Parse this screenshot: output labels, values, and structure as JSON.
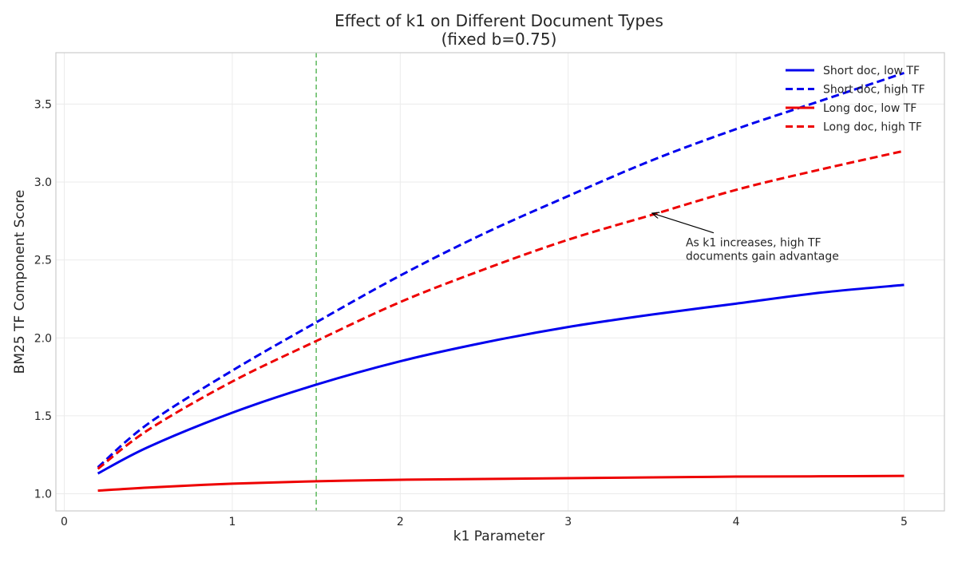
{
  "chart_data": {
    "type": "line",
    "title": "Effect of k1 on Different Document Types",
    "subtitle": "(fixed b=0.75)",
    "xlabel": "k1 Parameter",
    "ylabel": "BM25 TF Component Score",
    "xlim": [
      -0.05,
      5.24
    ],
    "ylim": [
      0.89,
      3.83
    ],
    "xticks": [
      0,
      1,
      2,
      3,
      4,
      5
    ],
    "xtick_labels": [
      "0",
      "1",
      "2",
      "3",
      "4",
      "5"
    ],
    "yticks": [
      1.0,
      1.5,
      2.0,
      2.5,
      3.0,
      3.5
    ],
    "ytick_labels": [
      "1.0",
      "1.5",
      "2.0",
      "2.5",
      "3.0",
      "3.5"
    ],
    "grid": true,
    "legend_position": "top-right",
    "x": [
      0.2,
      0.5,
      1.0,
      1.5,
      2.0,
      2.5,
      3.0,
      3.5,
      4.0,
      4.5,
      5.0
    ],
    "series": [
      {
        "name": "Short doc, low TF",
        "color": "#0000ee",
        "dash": "solid",
        "values": [
          1.13,
          1.3,
          1.52,
          1.7,
          1.85,
          1.97,
          2.07,
          2.15,
          2.22,
          2.29,
          2.34
        ]
      },
      {
        "name": "Short doc, high TF",
        "color": "#0000ee",
        "dash": "dashed",
        "values": [
          1.17,
          1.45,
          1.79,
          2.1,
          2.4,
          2.67,
          2.91,
          3.14,
          3.34,
          3.52,
          3.7
        ]
      },
      {
        "name": "Long doc, low TF",
        "color": "#ee0000",
        "dash": "solid",
        "values": [
          1.02,
          1.04,
          1.065,
          1.08,
          1.09,
          1.095,
          1.1,
          1.105,
          1.11,
          1.112,
          1.115
        ]
      },
      {
        "name": "Long doc, high TF",
        "color": "#ee0000",
        "dash": "dashed",
        "values": [
          1.16,
          1.41,
          1.72,
          1.98,
          2.23,
          2.44,
          2.63,
          2.79,
          2.95,
          3.08,
          3.2
        ]
      }
    ],
    "reference_line": {
      "x": 1.5,
      "color": "#5cb85c",
      "dash": "dashed"
    },
    "annotation": {
      "line1": "As k1 increases, high TF",
      "line2": "documents gain advantage",
      "arrow_target": {
        "x": 3.5,
        "y": 2.8
      },
      "text_anchor": {
        "x": 3.7,
        "y": 2.5
      }
    }
  }
}
